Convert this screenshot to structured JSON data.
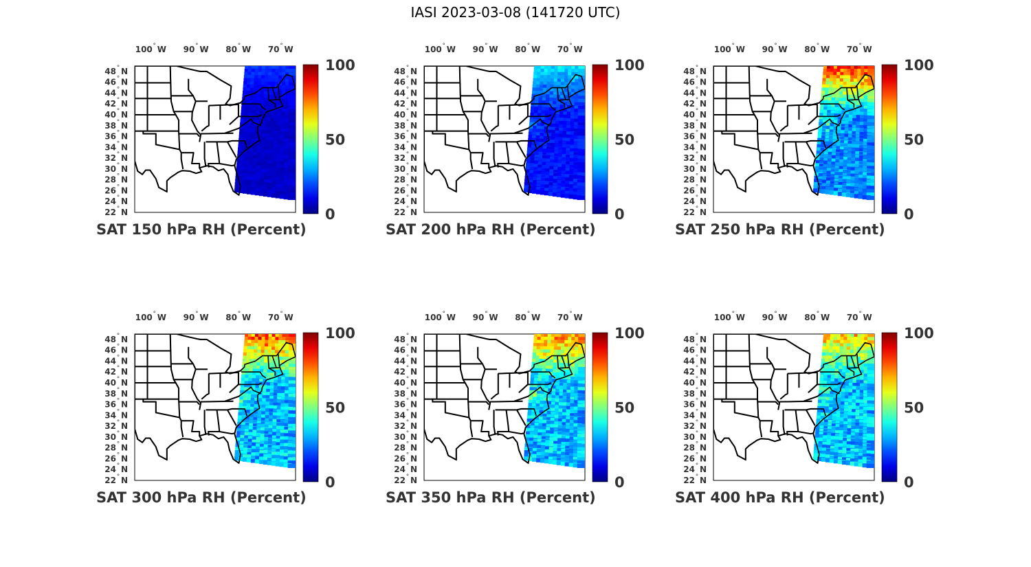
{
  "figure": {
    "title": "IASI 2023-03-08 (141720 UTC)"
  },
  "axes": {
    "lon_labels": [
      "100",
      "90",
      "80",
      "70"
    ],
    "lon_suffix": "W",
    "lat_labels": [
      "48",
      "46",
      "44",
      "42",
      "40",
      "38",
      "36",
      "34",
      "32",
      "30",
      "28",
      "26",
      "24",
      "22"
    ],
    "lat_suffix": "N",
    "degree_symbol": "°"
  },
  "colorbar": {
    "ticks": [
      "100",
      "50",
      "0"
    ],
    "colormap": "jet",
    "range": [
      0,
      100
    ]
  },
  "chart_data": [
    {
      "type": "heatmap",
      "title": "SAT 150 hPa RH (Percent)",
      "level_hPa": 150,
      "variable": "RH (Percent)",
      "swath_character": "very dry, nearly uniform low RH",
      "swath_rh_typical": 8,
      "swath_rh_max": 20,
      "xlim": [
        -105,
        -67
      ],
      "ylim": [
        22,
        49
      ]
    },
    {
      "type": "heatmap",
      "title": "SAT 200 hPa RH (Percent)",
      "level_hPa": 200,
      "variable": "RH (Percent)",
      "swath_character": "dry, low RH with slight increase near coast",
      "swath_rh_typical": 15,
      "swath_rh_max": 40,
      "xlim": [
        -105,
        -67
      ],
      "ylim": [
        22,
        49
      ]
    },
    {
      "type": "heatmap",
      "title": "SAT 250 hPa RH (Percent)",
      "level_hPa": 250,
      "variable": "RH (Percent)",
      "swath_character": "mostly low-moderate RH with very moist region at northern edge",
      "swath_rh_typical": 30,
      "swath_rh_max": 95,
      "xlim": [
        -105,
        -67
      ],
      "ylim": [
        22,
        49
      ]
    },
    {
      "type": "heatmap",
      "title": "SAT 300 hPa RH (Percent)",
      "level_hPa": 300,
      "variable": "RH (Percent)",
      "swath_character": "moist north (50-90), drier south",
      "swath_rh_typical": 35,
      "swath_rh_max": 90,
      "xlim": [
        -105,
        -67
      ],
      "ylim": [
        22,
        49
      ]
    },
    {
      "type": "heatmap",
      "title": "SAT 350 hPa RH (Percent)",
      "level_hPa": 350,
      "variable": "RH (Percent)",
      "swath_character": "moist north (50-85), moderate south",
      "swath_rh_typical": 35,
      "swath_rh_max": 85,
      "xlim": [
        -105,
        -67
      ],
      "ylim": [
        22,
        49
      ]
    },
    {
      "type": "heatmap",
      "title": "SAT 400 hPa RH (Percent)",
      "level_hPa": 400,
      "variable": "RH (Percent)",
      "swath_character": "moderately moist north (50-75), mixed south",
      "swath_rh_typical": 35,
      "swath_rh_max": 75,
      "xlim": [
        -105,
        -67
      ],
      "ylim": [
        22,
        49
      ]
    }
  ]
}
